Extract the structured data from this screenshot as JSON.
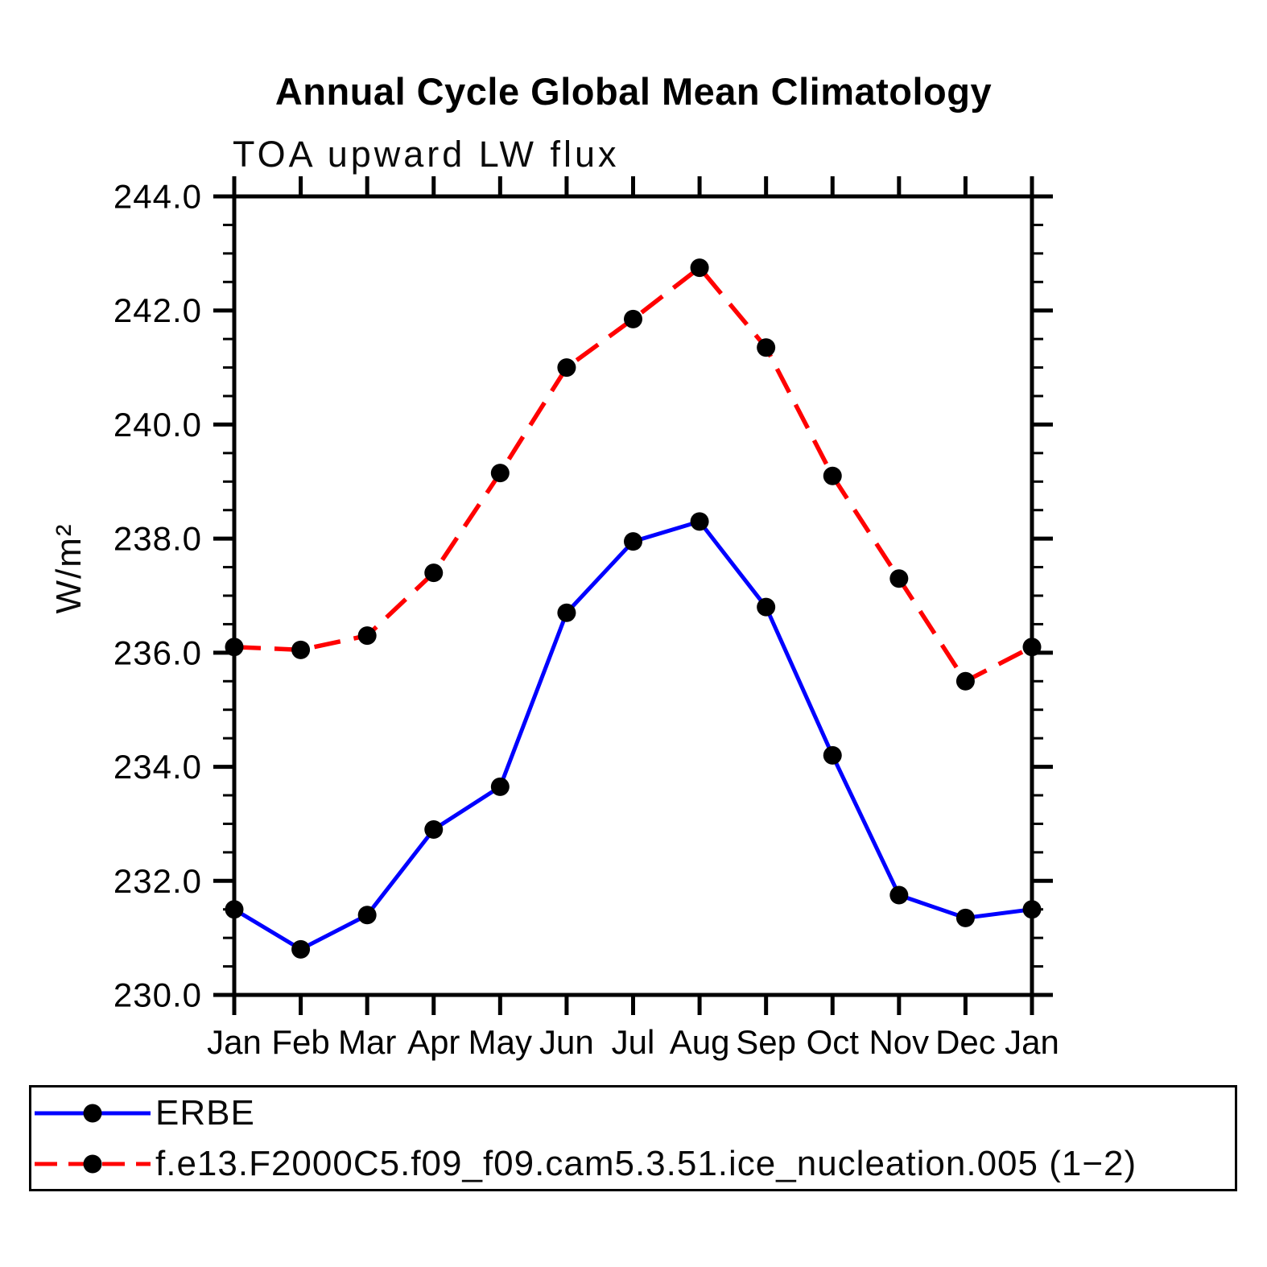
{
  "page": {
    "background": "#ffffff"
  },
  "chart_data": {
    "type": "line",
    "title": "Annual Cycle Global Mean Climatology",
    "subtitle": "TOA upward LW flux",
    "xlabel": "",
    "ylabel": "W/m²",
    "categories": [
      "Jan",
      "Feb",
      "Mar",
      "Apr",
      "May",
      "Jun",
      "Jul",
      "Aug",
      "Sep",
      "Oct",
      "Nov",
      "Dec",
      "Jan"
    ],
    "series": [
      {
        "name": "ERBE",
        "color": "#0000ff",
        "line_style": "solid",
        "marker": "filled-circle",
        "marker_color": "#000000",
        "values": [
          231.5,
          230.8,
          231.4,
          232.9,
          233.65,
          236.7,
          237.95,
          238.3,
          236.8,
          234.2,
          231.75,
          231.35,
          231.5
        ]
      },
      {
        "name": "f.e13.F2000C5.f09_f09.cam5.3.51.ice_nucleation.005 (1−2)",
        "color": "#ff0000",
        "line_style": "dashed",
        "marker": "filled-circle",
        "marker_color": "#000000",
        "values": [
          236.1,
          236.05,
          236.3,
          237.4,
          239.15,
          241.0,
          241.85,
          242.75,
          241.35,
          239.1,
          237.3,
          235.5,
          236.1
        ]
      }
    ],
    "ylim": [
      230.0,
      244.0
    ],
    "ytick_major_step": 2.0,
    "ytick_minor_step": 0.5,
    "ytick_label_format": "one_decimal",
    "grid": "off",
    "tick_direction": "out",
    "axis_color": "#000000",
    "legend_position": "bottom-box"
  },
  "legend": {
    "entries": [
      {
        "label": "ERBE"
      },
      {
        "label": "f.e13.F2000C5.f09_f09.cam5.3.51.ice_nucleation.005 (1−2)"
      }
    ]
  }
}
